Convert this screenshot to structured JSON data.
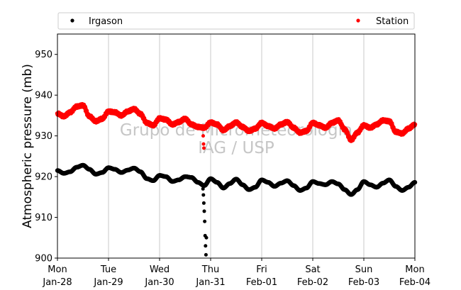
{
  "chart_data": {
    "type": "scatter",
    "title": "",
    "xlabel": "",
    "ylabel": "Atmospheric pressure (mb)",
    "ylim": [
      900,
      955
    ],
    "yticks": [
      900,
      910,
      920,
      930,
      940,
      950
    ],
    "xlim": [
      "2019-01-28T00:00",
      "2019-02-04T00:00"
    ],
    "xticks": [
      {
        "date": "2019-01-28",
        "day": "Mon",
        "label": "Jan-28"
      },
      {
        "date": "2019-01-29",
        "day": "Tue",
        "label": "Jan-29"
      },
      {
        "date": "2019-01-30",
        "day": "Wed",
        "label": "Jan-30"
      },
      {
        "date": "2019-01-31",
        "day": "Thu",
        "label": "Jan-31"
      },
      {
        "date": "2019-02-01",
        "day": "Fri",
        "label": "Feb-01"
      },
      {
        "date": "2019-02-02",
        "day": "Sat",
        "label": "Feb-02"
      },
      {
        "date": "2019-02-03",
        "day": "Sun",
        "label": "Feb-03"
      },
      {
        "date": "2019-02-04",
        "day": "Mon",
        "label": "Feb-04"
      }
    ],
    "grid": "vertical",
    "legend_placement": "top, above plot",
    "watermark": [
      "Grupo de Micrometeorologia",
      "IAG / USP"
    ],
    "series": [
      {
        "name": "Irgason",
        "color": "#000000",
        "x": [
          "2019-01-28T00:00",
          "2019-01-28T03:00",
          "2019-01-28T06:00",
          "2019-01-28T09:00",
          "2019-01-28T12:00",
          "2019-01-28T15:00",
          "2019-01-28T18:00",
          "2019-01-28T21:00",
          "2019-01-29T00:00",
          "2019-01-29T03:00",
          "2019-01-29T06:00",
          "2019-01-29T09:00",
          "2019-01-29T12:00",
          "2019-01-29T15:00",
          "2019-01-29T18:00",
          "2019-01-29T21:00",
          "2019-01-30T00:00",
          "2019-01-30T03:00",
          "2019-01-30T06:00",
          "2019-01-30T09:00",
          "2019-01-30T12:00",
          "2019-01-30T15:00",
          "2019-01-30T18:00",
          "2019-01-30T21:00",
          "2019-01-31T00:00",
          "2019-01-31T03:00",
          "2019-01-31T06:00",
          "2019-01-31T09:00",
          "2019-01-31T12:00",
          "2019-01-31T15:00",
          "2019-01-31T18:00",
          "2019-01-31T21:00",
          "2019-02-01T00:00",
          "2019-02-01T03:00",
          "2019-02-01T06:00",
          "2019-02-01T09:00",
          "2019-02-01T12:00",
          "2019-02-01T15:00",
          "2019-02-01T18:00",
          "2019-02-01T21:00",
          "2019-02-02T00:00",
          "2019-02-02T03:00",
          "2019-02-02T06:00",
          "2019-02-02T09:00",
          "2019-02-02T12:00",
          "2019-02-02T15:00",
          "2019-02-02T18:00",
          "2019-02-02T21:00",
          "2019-02-03T00:00",
          "2019-02-03T03:00",
          "2019-02-03T06:00",
          "2019-02-03T09:00",
          "2019-02-03T12:00",
          "2019-02-03T15:00",
          "2019-02-03T18:00",
          "2019-02-03T21:00",
          "2019-02-04T00:00"
        ],
        "y": [
          921.5,
          920.8,
          921.2,
          922.3,
          922.8,
          921.8,
          920.6,
          921.0,
          922.2,
          921.8,
          921.0,
          921.6,
          922.1,
          921.2,
          919.5,
          919.0,
          920.3,
          920.0,
          918.8,
          919.2,
          920.0,
          919.8,
          918.6,
          917.8,
          919.5,
          918.6,
          917.2,
          918.3,
          919.4,
          918.0,
          916.8,
          917.4,
          919.2,
          918.6,
          917.6,
          918.4,
          919.0,
          917.8,
          916.6,
          917.2,
          918.8,
          918.3,
          918.0,
          918.8,
          918.2,
          916.8,
          915.6,
          916.8,
          918.8,
          918.0,
          917.4,
          918.4,
          919.2,
          917.6,
          916.6,
          917.4,
          918.6
        ],
        "anomaly_x": [
          "2019-01-30T20:24",
          "2019-01-30T20:36",
          "2019-01-30T20:48",
          "2019-01-30T21:00",
          "2019-01-30T21:12",
          "2019-01-30T21:24",
          "2019-01-30T21:36",
          "2019-01-30T21:48",
          "2019-01-30T22:00"
        ],
        "anomaly_y": [
          917.0,
          915.5,
          913.5,
          911.5,
          909.0,
          905.5,
          903.0,
          900.8,
          905.0
        ]
      },
      {
        "name": "Station",
        "color": "#ff0000",
        "x": [
          "2019-01-28T00:00",
          "2019-01-28T03:00",
          "2019-01-28T06:00",
          "2019-01-28T09:00",
          "2019-01-28T12:00",
          "2019-01-28T15:00",
          "2019-01-28T18:00",
          "2019-01-28T21:00",
          "2019-01-29T00:00",
          "2019-01-29T03:00",
          "2019-01-29T06:00",
          "2019-01-29T09:00",
          "2019-01-29T12:00",
          "2019-01-29T15:00",
          "2019-01-29T18:00",
          "2019-01-29T21:00",
          "2019-01-30T00:00",
          "2019-01-30T03:00",
          "2019-01-30T06:00",
          "2019-01-30T09:00",
          "2019-01-30T12:00",
          "2019-01-30T15:00",
          "2019-01-30T18:00",
          "2019-01-30T21:00",
          "2019-01-31T00:00",
          "2019-01-31T03:00",
          "2019-01-31T06:00",
          "2019-01-31T09:00",
          "2019-01-31T12:00",
          "2019-01-31T15:00",
          "2019-01-31T18:00",
          "2019-01-31T21:00",
          "2019-02-01T00:00",
          "2019-02-01T03:00",
          "2019-02-01T06:00",
          "2019-02-01T09:00",
          "2019-02-01T12:00",
          "2019-02-01T15:00",
          "2019-02-01T18:00",
          "2019-02-01T21:00",
          "2019-02-02T00:00",
          "2019-02-02T03:00",
          "2019-02-02T06:00",
          "2019-02-02T09:00",
          "2019-02-02T12:00",
          "2019-02-02T15:00",
          "2019-02-02T18:00",
          "2019-02-02T21:00",
          "2019-02-03T00:00",
          "2019-02-03T03:00",
          "2019-02-03T06:00",
          "2019-02-03T09:00",
          "2019-02-03T12:00",
          "2019-02-03T15:00",
          "2019-02-03T18:00",
          "2019-02-03T21:00",
          "2019-02-04T00:00"
        ],
        "y": [
          935.5,
          934.8,
          935.8,
          937.2,
          937.5,
          934.8,
          933.6,
          934.2,
          936.0,
          935.8,
          935.0,
          936.0,
          936.6,
          935.4,
          933.2,
          932.6,
          934.3,
          934.0,
          932.8,
          933.4,
          934.2,
          932.8,
          932.2,
          932.0,
          933.3,
          932.8,
          931.4,
          932.4,
          933.3,
          932.2,
          931.2,
          931.8,
          933.2,
          932.4,
          931.8,
          932.8,
          933.4,
          932.0,
          930.8,
          931.2,
          933.2,
          932.6,
          932.0,
          933.2,
          933.8,
          931.6,
          929.0,
          930.8,
          932.6,
          932.0,
          932.8,
          933.8,
          933.6,
          931.0,
          930.6,
          931.8,
          932.8
        ],
        "anomaly_x": [
          "2019-01-30T20:30",
          "2019-01-30T20:40",
          "2019-01-30T20:50"
        ],
        "anomaly_y": [
          930.0,
          928.0,
          927.0
        ]
      }
    ]
  }
}
